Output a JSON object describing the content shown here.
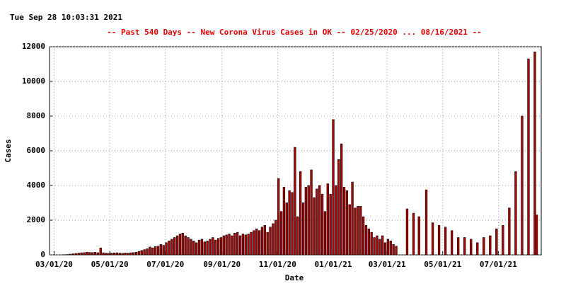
{
  "chart_data": {
    "type": "bar",
    "timestamp": "Tue Sep 28 10:03:31 2021",
    "title": "--  Past 540 Days  --  New Corona Virus Cases in OK  -- 02/25/2020 ... 08/16/2021  --",
    "xlabel": "Date",
    "ylabel": "Cases",
    "color": "#b00000",
    "edge_color": "#000000",
    "title_color": "#e00000",
    "grid": true,
    "xlim": [
      "02/25/20",
      "08/17/21"
    ],
    "xticks": [
      "03/01/20",
      "05/01/20",
      "07/01/20",
      "09/01/20",
      "11/01/20",
      "01/01/21",
      "03/01/21",
      "05/01/21",
      "07/01/21"
    ],
    "ylim": [
      0,
      12000
    ],
    "yticks": [
      0,
      2000,
      4000,
      6000,
      8000,
      10000,
      12000
    ],
    "x": [
      "03/01/20",
      "03/04/20",
      "03/07/20",
      "03/10/20",
      "03/13/20",
      "03/16/20",
      "03/19/20",
      "03/22/20",
      "03/25/20",
      "03/28/20",
      "03/31/20",
      "04/03/20",
      "04/06/20",
      "04/09/20",
      "04/12/20",
      "04/15/20",
      "04/18/20",
      "04/21/20",
      "04/24/20",
      "04/27/20",
      "04/30/20",
      "05/03/20",
      "05/06/20",
      "05/09/20",
      "05/12/20",
      "05/15/20",
      "05/18/20",
      "05/21/20",
      "05/24/20",
      "05/27/20",
      "05/30/20",
      "06/02/20",
      "06/05/20",
      "06/08/20",
      "06/11/20",
      "06/14/20",
      "06/17/20",
      "06/20/20",
      "06/23/20",
      "06/26/20",
      "06/29/20",
      "07/02/20",
      "07/05/20",
      "07/08/20",
      "07/11/20",
      "07/14/20",
      "07/17/20",
      "07/20/20",
      "07/23/20",
      "07/26/20",
      "07/29/20",
      "08/01/20",
      "08/04/20",
      "08/07/20",
      "08/10/20",
      "08/13/20",
      "08/16/20",
      "08/19/20",
      "08/22/20",
      "08/25/20",
      "08/28/20",
      "08/31/20",
      "09/03/20",
      "09/06/20",
      "09/09/20",
      "09/12/20",
      "09/15/20",
      "09/18/20",
      "09/21/20",
      "09/24/20",
      "09/27/20",
      "09/30/20",
      "10/03/20",
      "10/06/20",
      "10/09/20",
      "10/12/20",
      "10/15/20",
      "10/18/20",
      "10/21/20",
      "10/24/20",
      "10/27/20",
      "10/30/20",
      "11/02/20",
      "11/05/20",
      "11/08/20",
      "11/11/20",
      "11/14/20",
      "11/17/20",
      "11/20/20",
      "11/23/20",
      "11/26/20",
      "11/29/20",
      "12/02/20",
      "12/05/20",
      "12/08/20",
      "12/11/20",
      "12/14/20",
      "12/17/20",
      "12/20/20",
      "12/23/20",
      "12/26/20",
      "12/29/20",
      "01/01/21",
      "01/04/21",
      "01/07/21",
      "01/10/21",
      "01/13/21",
      "01/16/21",
      "01/19/21",
      "01/22/21",
      "01/25/21",
      "01/28/21",
      "01/31/21",
      "02/03/21",
      "02/06/21",
      "02/09/21",
      "02/12/21",
      "02/15/21",
      "02/18/21",
      "02/21/21",
      "02/24/21",
      "02/27/21",
      "03/02/21",
      "03/05/21",
      "03/08/21",
      "03/11/21",
      "03/23/21",
      "03/30/21",
      "04/05/21",
      "04/13/21",
      "04/20/21",
      "04/27/21",
      "05/04/21",
      "05/11/21",
      "05/18/21",
      "05/25/21",
      "06/01/21",
      "06/08/21",
      "06/15/21",
      "06/22/21",
      "06/29/21",
      "07/06/21",
      "07/13/21",
      "07/20/21",
      "07/27/21",
      "08/03/21",
      "08/10/21",
      "08/12/21"
    ],
    "values": [
      0,
      0,
      0,
      0,
      10,
      20,
      40,
      60,
      80,
      100,
      120,
      130,
      150,
      140,
      130,
      150,
      120,
      400,
      120,
      100,
      90,
      100,
      110,
      120,
      100,
      90,
      110,
      100,
      120,
      130,
      150,
      200,
      250,
      300,
      350,
      450,
      400,
      480,
      500,
      600,
      550,
      700,
      800,
      900,
      1000,
      1100,
      1200,
      1250,
      1100,
      1000,
      900,
      800,
      700,
      850,
      900,
      750,
      800,
      900,
      1000,
      850,
      950,
      1000,
      1100,
      1150,
      1200,
      1100,
      1250,
      1300,
      1100,
      1200,
      1150,
      1200,
      1300,
      1400,
      1500,
      1400,
      1600,
      1700,
      1300,
      1600,
      1800,
      2000,
      4400,
      2500,
      3900,
      3000,
      3700,
      3600,
      6200,
      2200,
      4800,
      3000,
      3900,
      4000,
      4900,
      3300,
      3800,
      4000,
      3500,
      2500,
      4100,
      3500,
      7800,
      4000,
      5500,
      6400,
      3900,
      3700,
      2900,
      4200,
      2700,
      2800,
      2800,
      2200,
      1700,
      1500,
      1300,
      1000,
      1100,
      900,
      1100,
      700,
      900,
      800,
      600,
      500,
      2650,
      2400,
      2200,
      3750,
      1850,
      1700,
      1600,
      1400,
      1000,
      1000,
      900,
      700,
      1000,
      1100,
      1500,
      1700,
      2700,
      4800,
      8000,
      11300,
      11700,
      2300
    ]
  }
}
